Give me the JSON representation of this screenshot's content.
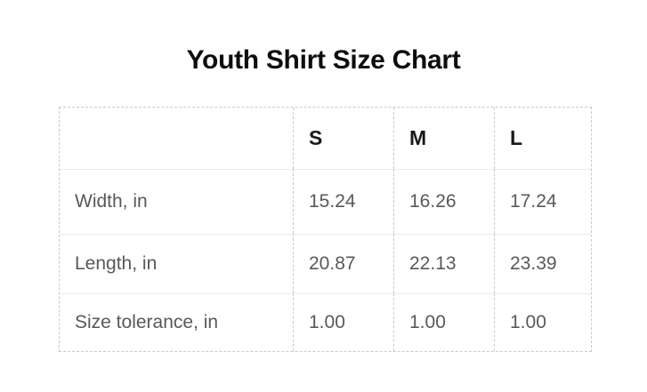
{
  "chart_data": {
    "type": "table",
    "title": "Youth Shirt Size Chart",
    "columns": [
      "",
      "S",
      "M",
      "L"
    ],
    "rows": [
      {
        "label": "Width, in",
        "values": [
          "15.24",
          "16.26",
          "17.24"
        ]
      },
      {
        "label": "Length, in",
        "values": [
          "20.87",
          "22.13",
          "23.39"
        ]
      },
      {
        "label": "Size tolerance, in",
        "values": [
          "1.00",
          "1.00",
          "1.00"
        ]
      }
    ],
    "units": "in",
    "layout": {
      "header_row": true,
      "outer_border": "dashed",
      "column_dividers": "dashed",
      "row_dividers": "solid"
    }
  },
  "colors": {
    "background": "#ffffff",
    "title_text": "#0d0d0d",
    "header_text": "#1a1a1a",
    "cell_text": "#595959",
    "dashed_border": "#c9c9c9",
    "row_divider": "#e9e9e9"
  }
}
